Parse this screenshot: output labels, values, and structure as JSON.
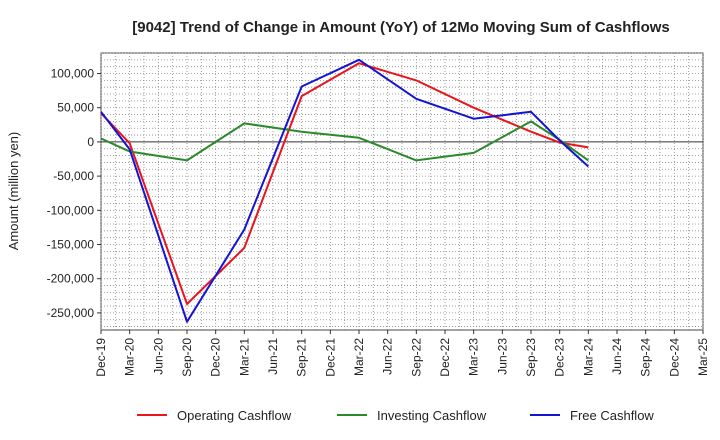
{
  "chart_data": {
    "type": "line",
    "title": "[9042]  Trend of Change in Amount (YoY) of 12Mo Moving Sum of Cashflows",
    "xlabel": "",
    "ylabel": "Amount (million yen)",
    "ylim": [
      -275000,
      130000
    ],
    "yticks": [
      100000,
      50000,
      0,
      -50000,
      -100000,
      -150000,
      -200000,
      -250000
    ],
    "ytick_labels": [
      "100,000",
      "50,000",
      "0",
      "-50,000",
      "-100,000",
      "-150,000",
      "-200,000",
      "-250,000"
    ],
    "categories": [
      "Dec-19",
      "Mar-20",
      "Jun-20",
      "Sep-20",
      "Dec-20",
      "Mar-21",
      "Jun-21",
      "Sep-21",
      "Dec-21",
      "Mar-22",
      "Jun-22",
      "Sep-22",
      "Dec-22",
      "Mar-23",
      "Jun-23",
      "Sep-23",
      "Dec-23",
      "Mar-24",
      "Jun-24",
      "Sep-24",
      "Dec-24",
      "Mar-25"
    ],
    "grid": true,
    "legend_position": "bottom",
    "series": [
      {
        "name": "Operating Cashflow",
        "color": "#e8141e",
        "values": [
          42000,
          -2000,
          null,
          -237000,
          null,
          -155000,
          null,
          67000,
          null,
          115000,
          null,
          90000,
          null,
          50000,
          null,
          15000,
          -1000,
          -8000,
          null,
          null,
          null,
          null
        ]
      },
      {
        "name": "Investing Cashflow",
        "color": "#2a8a2a",
        "values": [
          5000,
          -14000,
          null,
          -27000,
          null,
          27000,
          null,
          15000,
          null,
          6000,
          null,
          -27000,
          null,
          -16000,
          null,
          30000,
          3000,
          -27000,
          null,
          null,
          null,
          null
        ]
      },
      {
        "name": "Free Cashflow",
        "color": "#1414d2",
        "values": [
          44000,
          -11000,
          null,
          -263000,
          null,
          -128000,
          null,
          81000,
          null,
          120000,
          null,
          63000,
          null,
          34000,
          null,
          44000,
          2000,
          -36000,
          null,
          null,
          null,
          null
        ]
      }
    ]
  }
}
